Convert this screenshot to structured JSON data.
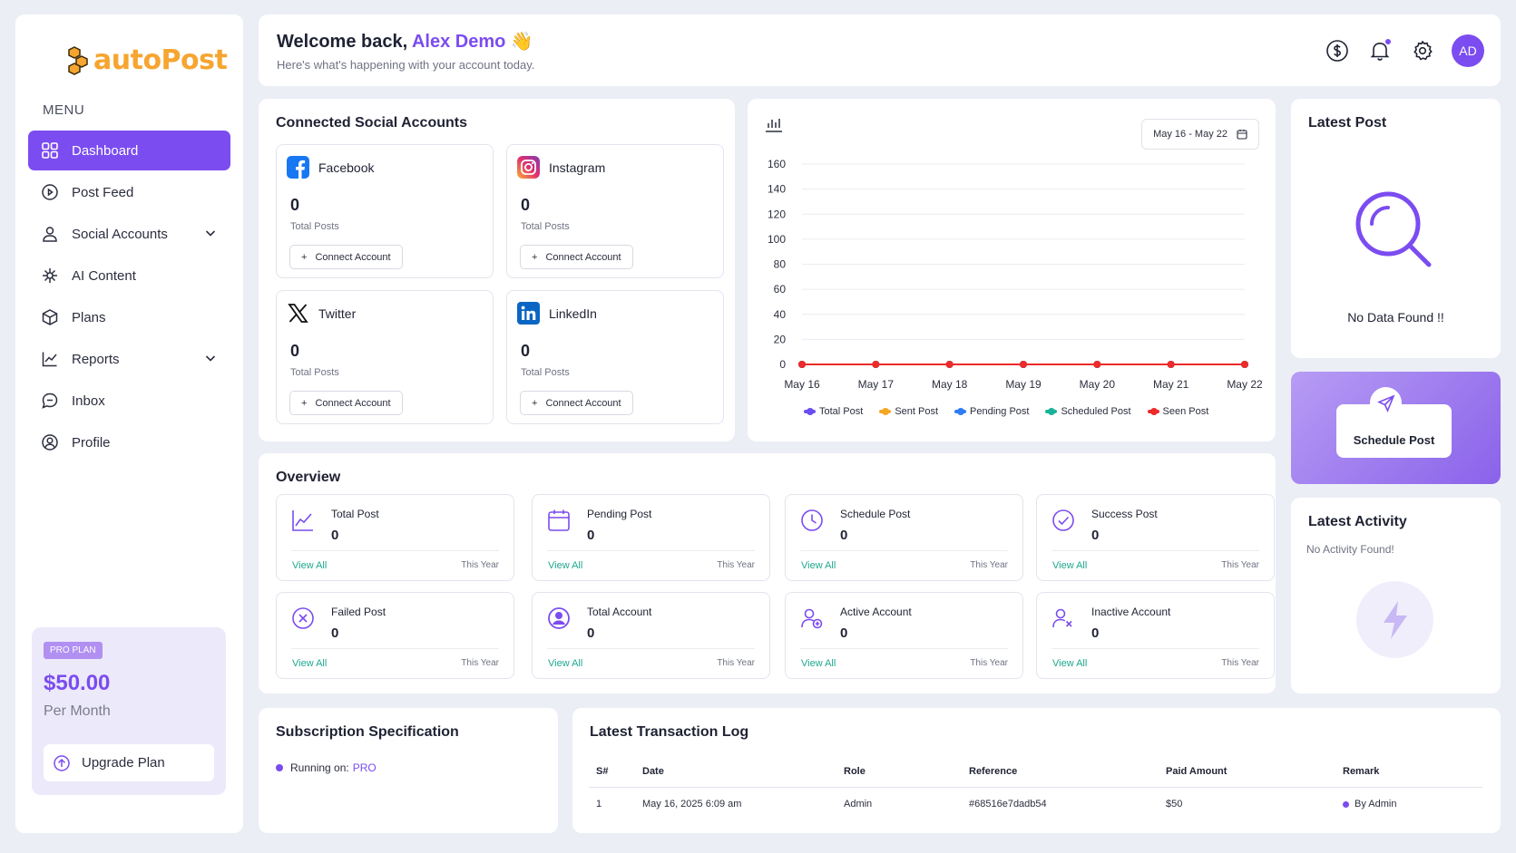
{
  "brand": {
    "name": "autoPost",
    "color": "#f6a530",
    "accent": "#7b4cf0"
  },
  "sidebar": {
    "menu_title": "MENU",
    "items": [
      {
        "label": "Dashboard",
        "icon": "grid-icon",
        "active": true
      },
      {
        "label": "Post Feed",
        "icon": "play-circle-icon"
      },
      {
        "label": "Social Accounts",
        "icon": "user-icon",
        "chevron": true
      },
      {
        "label": "AI Content",
        "icon": "sparkle-icon"
      },
      {
        "label": "Plans",
        "icon": "box-icon"
      },
      {
        "label": "Reports",
        "icon": "line-chart-icon",
        "chevron": true
      },
      {
        "label": "Inbox",
        "icon": "chat-icon"
      },
      {
        "label": "Profile",
        "icon": "user-circle-icon"
      }
    ],
    "plan": {
      "badge": "PRO PLAN",
      "price": "$50.00",
      "period": "Per Month",
      "upgrade": "Upgrade Plan"
    }
  },
  "header": {
    "welcome": "Welcome back,",
    "name": "Alex Demo",
    "emoji": "👋",
    "subtitle": "Here's what's happening with your account today.",
    "avatar": "AD"
  },
  "connected": {
    "title": "Connected Social Accounts",
    "accounts": [
      {
        "name": "Facebook",
        "count": "0",
        "label": "Total Posts",
        "button": "Connect Account"
      },
      {
        "name": "Instagram",
        "count": "0",
        "label": "Total Posts",
        "button": "Connect Account"
      },
      {
        "name": "Twitter",
        "count": "0",
        "label": "Total Posts",
        "button": "Connect Account"
      },
      {
        "name": "LinkedIn",
        "count": "0",
        "label": "Total Posts",
        "button": "Connect Account"
      }
    ]
  },
  "chart": {
    "date_range": "May 16 - May 22"
  },
  "chart_data": {
    "type": "line",
    "categories": [
      "May 16",
      "May 17",
      "May 18",
      "May 19",
      "May 20",
      "May 21",
      "May 22"
    ],
    "ylim": [
      0,
      160
    ],
    "yticks": [
      0,
      20,
      40,
      60,
      80,
      100,
      120,
      140,
      160
    ],
    "grid": true,
    "legend": "bottom",
    "series": [
      {
        "name": "Total Post",
        "color": "#6b4ef0",
        "values": [
          0,
          0,
          0,
          0,
          0,
          0,
          0
        ]
      },
      {
        "name": "Sent Post",
        "color": "#f5a623",
        "values": [
          0,
          0,
          0,
          0,
          0,
          0,
          0
        ]
      },
      {
        "name": "Pending Post",
        "color": "#2e7cf6",
        "values": [
          0,
          0,
          0,
          0,
          0,
          0,
          0
        ]
      },
      {
        "name": "Scheduled Post",
        "color": "#19b39a",
        "values": [
          0,
          0,
          0,
          0,
          0,
          0,
          0
        ]
      },
      {
        "name": "Seen Post",
        "color": "#ee2a2a",
        "values": [
          0,
          0,
          0,
          0,
          0,
          0,
          0
        ]
      }
    ]
  },
  "latest_post": {
    "title": "Latest Post",
    "empty": "No Data Found !!"
  },
  "schedule": {
    "label": "Schedule Post"
  },
  "latest_activity": {
    "title": "Latest Activity",
    "empty": "No Activity Found!"
  },
  "overview": {
    "title": "Overview",
    "cards": [
      {
        "title": "Total Post",
        "value": "0",
        "link": "View All",
        "period": "This Year",
        "icon": "trend-icon"
      },
      {
        "title": "Pending Post",
        "value": "0",
        "link": "View All",
        "period": "This Year",
        "icon": "calendar-icon"
      },
      {
        "title": "Schedule Post",
        "value": "0",
        "link": "View All",
        "period": "This Year",
        "icon": "clock-icon"
      },
      {
        "title": "Success Post",
        "value": "0",
        "link": "View All",
        "period": "This Year",
        "icon": "check-circle-icon"
      },
      {
        "title": "Failed Post",
        "value": "0",
        "link": "View All",
        "period": "This Year",
        "icon": "x-circle-icon"
      },
      {
        "title": "Total Account",
        "value": "0",
        "link": "View All",
        "period": "This Year",
        "icon": "account-icon"
      },
      {
        "title": "Active Account",
        "value": "0",
        "link": "View All",
        "period": "This Year",
        "icon": "user-add-icon"
      },
      {
        "title": "Inactive Account",
        "value": "0",
        "link": "View All",
        "period": "This Year",
        "icon": "user-remove-icon"
      }
    ]
  },
  "subscription": {
    "title": "Subscription Specification",
    "running_label": "Running on:",
    "plan": "PRO"
  },
  "transactions": {
    "title": "Latest Transaction Log",
    "columns": [
      "S#",
      "Date",
      "Role",
      "Reference",
      "Paid Amount",
      "Remark"
    ],
    "rows": [
      [
        "1",
        "May 16, 2025 6:09 am",
        "Admin",
        "#68516e7dadb54",
        "$50",
        "By Admin"
      ]
    ]
  }
}
